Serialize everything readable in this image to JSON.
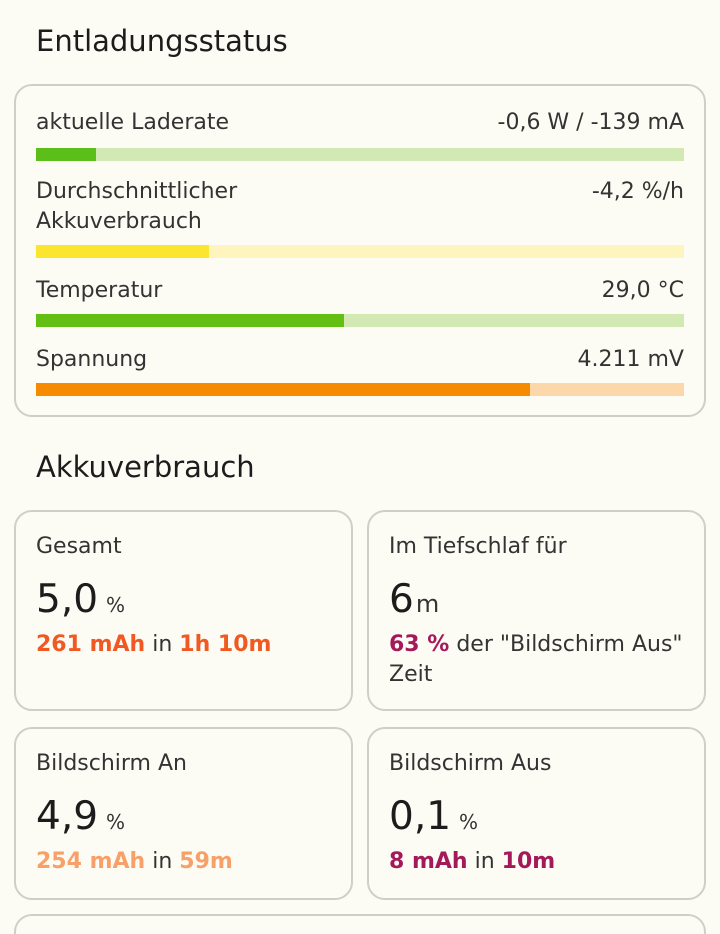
{
  "discharge": {
    "title": "Entladungsstatus",
    "rows": [
      {
        "label": "aktuelle Laderate",
        "value": "-0,6 W / -139 mA",
        "level": 0.092,
        "fill": "#5cbe18",
        "track": "#d3e9b4"
      },
      {
        "label": "Durchschnittlicher Akkuverbrauch",
        "label_line1": "Durchschnittlicher",
        "label_line2": "Akkuverbrauch",
        "value": "-4,2 %/h",
        "level": 0.267,
        "fill": "#fbe52e",
        "track": "#fdf5bd"
      },
      {
        "label": "Temperatur",
        "value": "29,0 °C",
        "level": 0.476,
        "fill": "#63bf12",
        "track": "#d3e9b4"
      },
      {
        "label": "Spannung",
        "value": "4.211 mV",
        "level": 0.763,
        "fill": "#f68a00",
        "track": "#fbd7aa"
      }
    ]
  },
  "usage": {
    "title": "Akkuverbrauch",
    "total": {
      "title": "Gesamt",
      "value": "5,0",
      "unit": "%",
      "mah": "261 mAh",
      "in": "in",
      "time": "1h 10m",
      "color": "#f05a22"
    },
    "deep_sleep": {
      "title": "Im Tiefschlaf für",
      "value": "6",
      "unit": "m",
      "percent": "63 %",
      "text": "der \"Bildschirm Aus\" Zeit",
      "color": "#a4195a"
    },
    "screen_on": {
      "title": "Bildschirm An",
      "value": "4,9",
      "unit": "%",
      "mah": "254 mAh",
      "in": "in",
      "time": "59m",
      "color": "#f7a06a"
    },
    "screen_off": {
      "title": "Bildschirm Aus",
      "value": "0,1",
      "unit": "%",
      "mah": "8 mAh",
      "in": "in",
      "time": "10m",
      "color": "#a4195a"
    }
  }
}
